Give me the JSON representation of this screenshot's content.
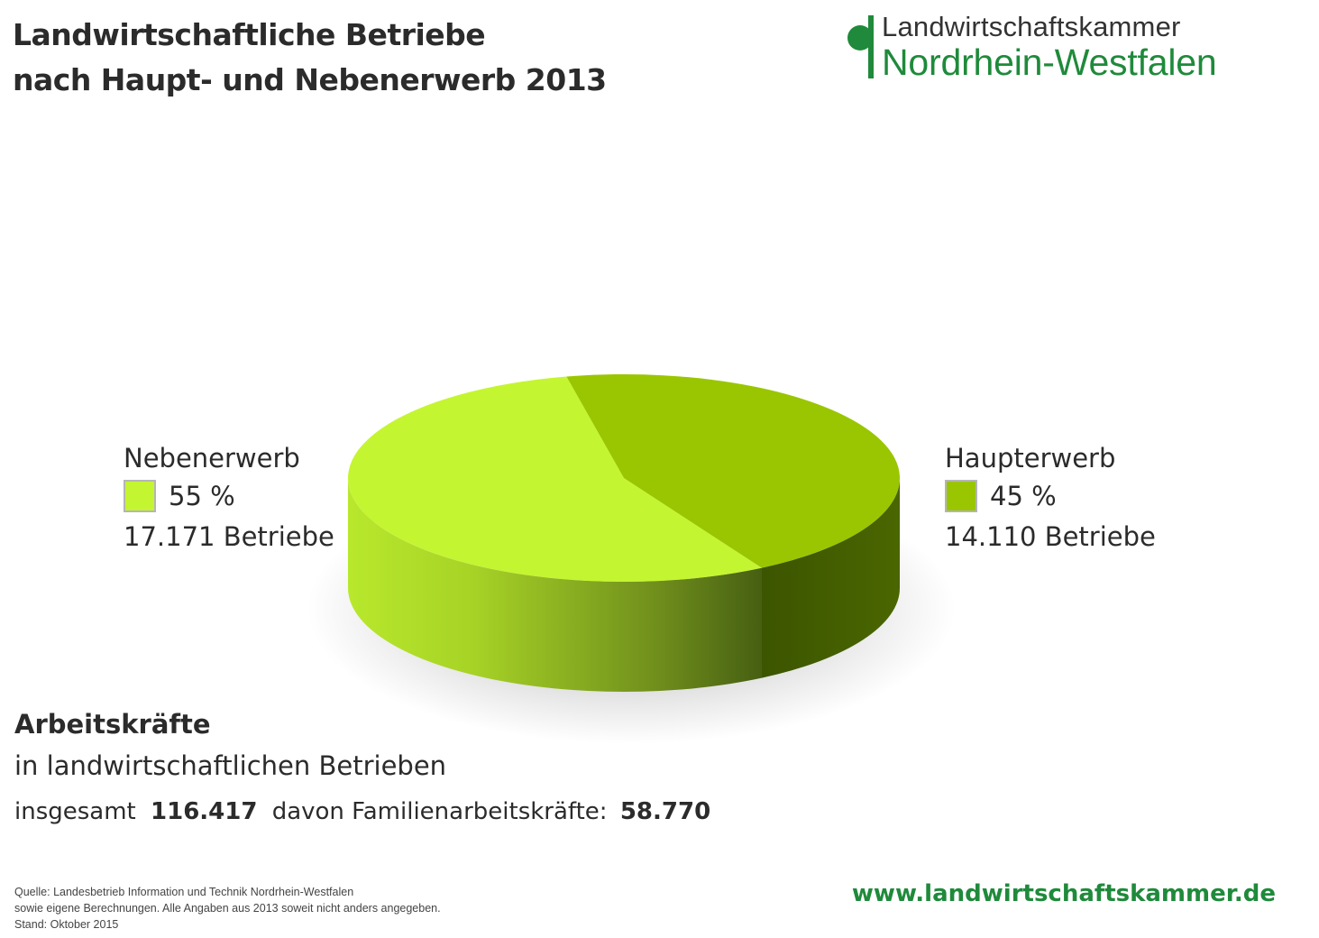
{
  "header": {
    "title_line1": "Landwirtschaftliche Betriebe",
    "title_line2": "nach Haupt- und Nebenerwerb 2013"
  },
  "logo": {
    "line1": "Landwirtschaftskammer",
    "line2": "Nordrhein-Westfalen"
  },
  "colors": {
    "nebenerwerb_top": "#c4f531",
    "haupterwerb_top": "#99c600",
    "brand_green": "#1f8a3b"
  },
  "chart_data": {
    "type": "pie",
    "style": "3d",
    "slices": [
      {
        "label": "Nebenerwerb",
        "percent": 55,
        "percent_label": "55 %",
        "count": 17171,
        "count_label": "17.171 Betriebe",
        "color": "#c4f531"
      },
      {
        "label": "Haupterwerb",
        "percent": 45,
        "percent_label": "45 %",
        "count": 14110,
        "count_label": "14.110 Betriebe",
        "color": "#99c600"
      }
    ]
  },
  "legend": {
    "nebenerwerb": {
      "name": "Nebenerwerb",
      "percent": "55 %",
      "count": "17.171 Betriebe"
    },
    "haupterwerb": {
      "name": "Haupterwerb",
      "percent": "45 %",
      "count": "14.110 Betriebe"
    }
  },
  "workforce": {
    "heading": "Arbeitskräfte",
    "subheading": "in landwirtschaftlichen Betrieben",
    "total_label": "insgesamt",
    "total_value": "116.417",
    "family_label": "davon Familienarbeitskräfte:",
    "family_value": "58.770"
  },
  "footer": {
    "source_line1": "Quelle: Landesbetrieb Information und Technik Nordrhein-Westfalen",
    "source_line2": "sowie eigene Berechnungen. Alle Angaben aus 2013 soweit nicht anders angegeben.",
    "source_line3": "Stand: Oktober 2015",
    "url": "www.landwirtschaftskammer.de"
  }
}
